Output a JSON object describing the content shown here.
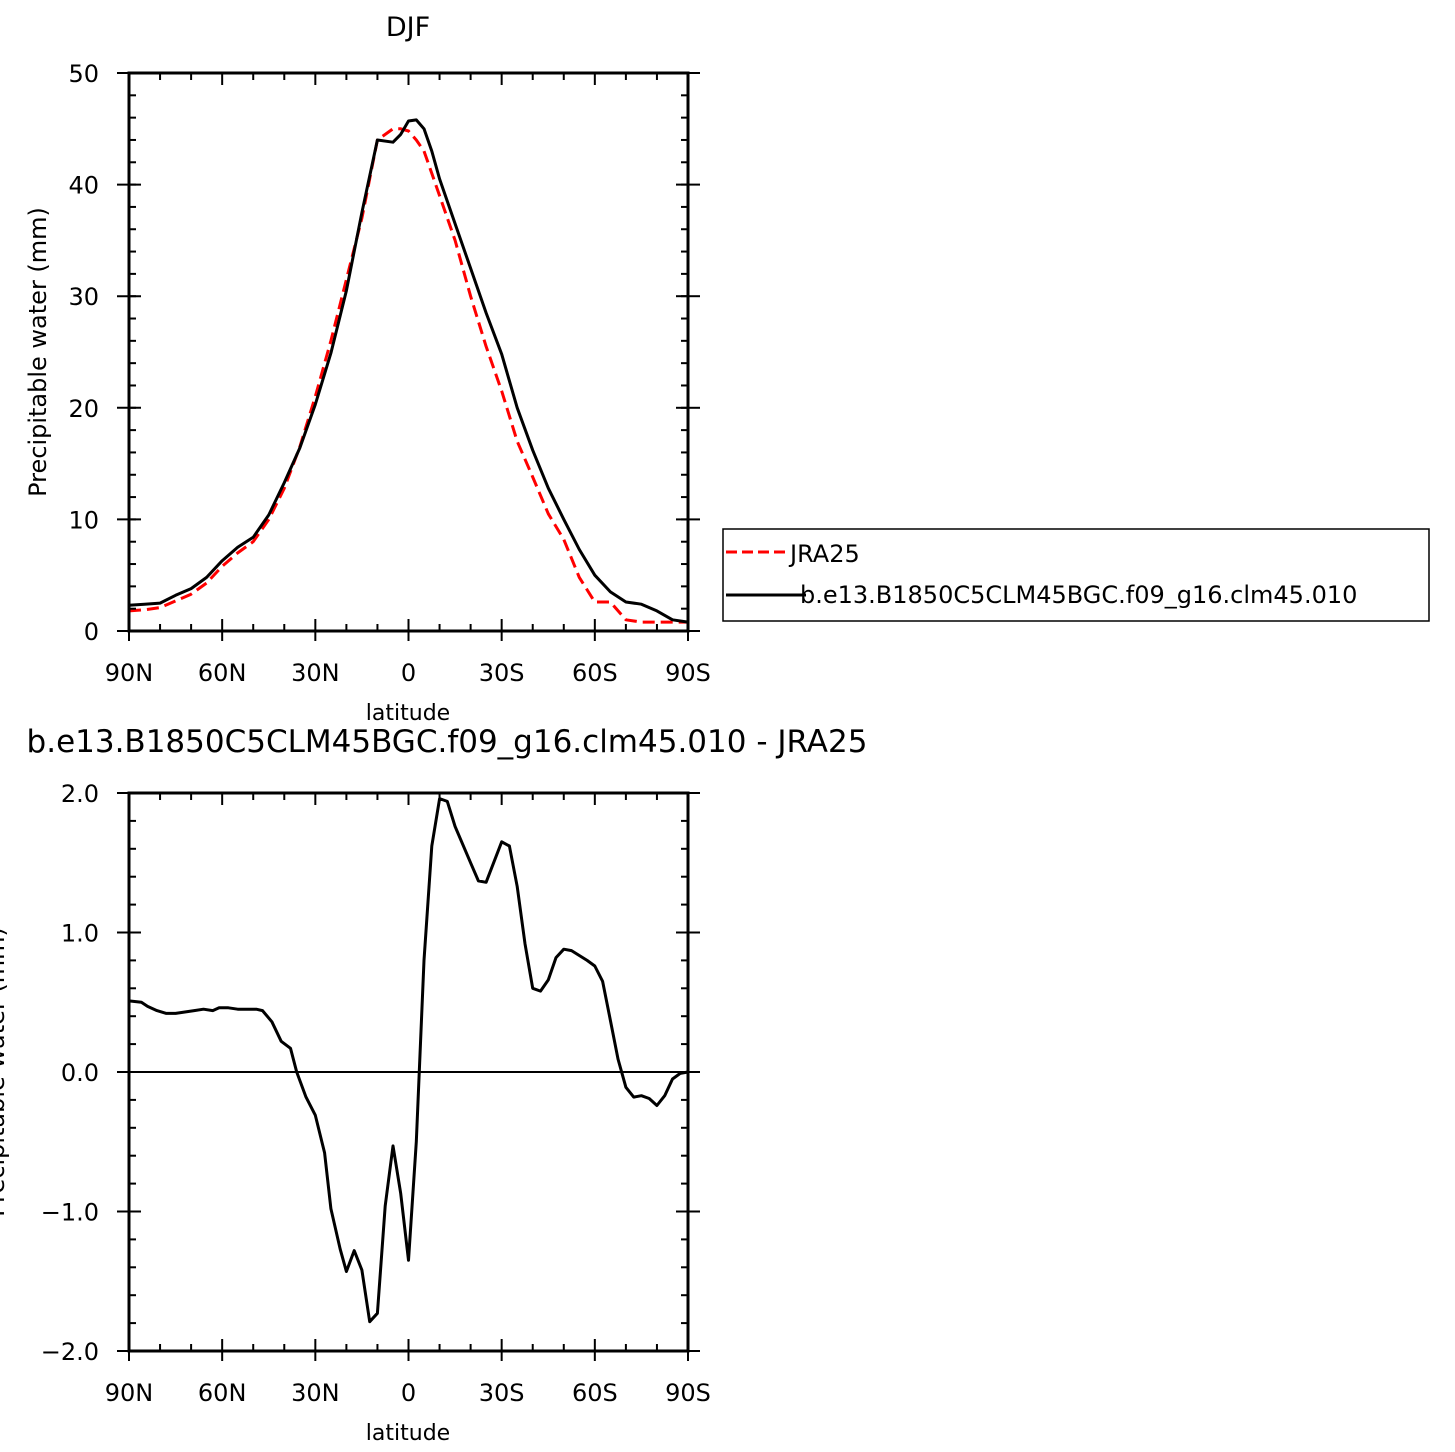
{
  "chart_data": [
    {
      "type": "line",
      "title": "DJF",
      "xlabel": "latitude",
      "ylabel": "Precipitable water (mm)",
      "xlim": [
        90,
        -90
      ],
      "ylim": [
        0,
        50
      ],
      "x_ticks": [
        {
          "value": 90,
          "label": "90N"
        },
        {
          "value": 60,
          "label": "60N"
        },
        {
          "value": 30,
          "label": "30N"
        },
        {
          "value": 0,
          "label": "0"
        },
        {
          "value": -30,
          "label": "30S"
        },
        {
          "value": -60,
          "label": "60S"
        },
        {
          "value": -90,
          "label": "90S"
        }
      ],
      "y_ticks": [
        {
          "value": 0,
          "label": "0"
        },
        {
          "value": 10,
          "label": "10"
        },
        {
          "value": 20,
          "label": "20"
        },
        {
          "value": 30,
          "label": "30"
        },
        {
          "value": 40,
          "label": "40"
        },
        {
          "value": 50,
          "label": "50"
        }
      ],
      "legend_position": "right",
      "series": [
        {
          "name": "JRA25",
          "color": "#ff0000",
          "dash": "dashed",
          "x": [
            90,
            85,
            80,
            75,
            70,
            65,
            60,
            55,
            50,
            45,
            40,
            35,
            30,
            25,
            20,
            15,
            10,
            5,
            2.5,
            0,
            -2.5,
            -5,
            -7.5,
            -10,
            -15,
            -20,
            -25,
            -30,
            -35,
            -40,
            -45,
            -50,
            -55,
            -60,
            -65,
            -70,
            -75,
            -80,
            -85,
            -90
          ],
          "y": [
            1.8,
            1.9,
            2.1,
            2.7,
            3.3,
            4.3,
            5.8,
            7.0,
            8.0,
            10.0,
            12.8,
            16.5,
            21.0,
            26.0,
            31.5,
            37.0,
            44.0,
            45.0,
            45.0,
            44.8,
            44.0,
            43.0,
            41.0,
            39.0,
            35.0,
            30.0,
            25.5,
            21.5,
            17.0,
            13.8,
            10.5,
            8.2,
            4.8,
            2.6,
            2.6,
            1.0,
            0.8,
            0.8,
            0.8,
            0.8
          ]
        },
        {
          "name": "b.e13.B1850C5CLM45BGC.f09_g16.clm45.010",
          "color": "#000000",
          "dash": "solid",
          "x": [
            90,
            85,
            80,
            75,
            70,
            65,
            60,
            55,
            50,
            45,
            40,
            35,
            30,
            25,
            20,
            15,
            10,
            5,
            2.5,
            0,
            -2.5,
            -5,
            -7.5,
            -10,
            -15,
            -20,
            -25,
            -30,
            -35,
            -40,
            -45,
            -50,
            -55,
            -60,
            -65,
            -70,
            -75,
            -80,
            -85,
            -90
          ],
          "y": [
            2.3,
            2.4,
            2.5,
            3.2,
            3.8,
            4.8,
            6.3,
            7.5,
            8.4,
            10.4,
            13.3,
            16.4,
            20.3,
            24.9,
            30.5,
            37.5,
            44.0,
            43.8,
            44.5,
            45.7,
            45.8,
            45.0,
            43.0,
            40.5,
            36.5,
            32.5,
            28.5,
            24.8,
            20.0,
            16.2,
            12.8,
            10.0,
            7.3,
            5.0,
            3.5,
            2.6,
            2.4,
            1.8,
            1.0,
            0.8
          ]
        }
      ]
    },
    {
      "type": "line",
      "title": "b.e13.B1850C5CLM45BGC.f09_g16.clm45.010 - JRA25",
      "xlabel": "latitude",
      "ylabel": "Precipitable water (mm)",
      "xlim": [
        90,
        -90
      ],
      "ylim": [
        -2.0,
        2.0
      ],
      "x_ticks": [
        {
          "value": 90,
          "label": "90N"
        },
        {
          "value": 60,
          "label": "60N"
        },
        {
          "value": 30,
          "label": "30N"
        },
        {
          "value": 0,
          "label": "0"
        },
        {
          "value": -30,
          "label": "30S"
        },
        {
          "value": -60,
          "label": "60S"
        },
        {
          "value": -90,
          "label": "90S"
        }
      ],
      "y_ticks": [
        {
          "value": -2.0,
          "label": "−2.0"
        },
        {
          "value": -1.0,
          "label": "−1.0"
        },
        {
          "value": 0.0,
          "label": "0.0"
        },
        {
          "value": 1.0,
          "label": "1.0"
        },
        {
          "value": 2.0,
          "label": "2.0"
        }
      ],
      "series": [
        {
          "color": "#000000",
          "dash": "solid",
          "x": [
            90,
            86,
            84,
            81,
            78,
            75,
            72,
            69,
            66,
            63,
            61,
            58,
            55,
            52,
            49,
            47,
            44,
            41,
            38,
            36,
            33,
            30,
            27,
            25,
            22,
            20,
            17.5,
            15,
            12.5,
            10,
            7.5,
            5,
            2.5,
            0,
            -2.5,
            -5,
            -7.5,
            -10,
            -12.5,
            -15,
            -20,
            -22.5,
            -25,
            -30,
            -32.5,
            -35,
            -37.5,
            -40,
            -42.5,
            -45,
            -47.5,
            -50,
            -52.5,
            -57.5,
            -60,
            -62.5,
            -65,
            -67.5,
            -70,
            -72.5,
            -75,
            -77.5,
            -80,
            -82.5,
            -85,
            -87.5,
            -90
          ],
          "y": [
            0.51,
            0.5,
            0.47,
            0.44,
            0.42,
            0.42,
            0.43,
            0.44,
            0.45,
            0.44,
            0.46,
            0.46,
            0.45,
            0.45,
            0.45,
            0.44,
            0.36,
            0.22,
            0.17,
            0.0,
            -0.18,
            -0.31,
            -0.58,
            -0.98,
            -1.27,
            -1.43,
            -1.28,
            -1.42,
            -1.79,
            -1.73,
            -0.96,
            -0.53,
            -0.87,
            -1.35,
            -0.5,
            0.8,
            1.62,
            1.96,
            1.94,
            1.76,
            1.5,
            1.37,
            1.36,
            1.65,
            1.62,
            1.33,
            0.92,
            0.6,
            0.58,
            0.66,
            0.82,
            0.88,
            0.87,
            0.8,
            0.76,
            0.65,
            0.37,
            0.09,
            -0.11,
            -0.18,
            -0.17,
            -0.19,
            -0.24,
            -0.17,
            -0.05,
            -0.01,
            0.0
          ]
        }
      ]
    }
  ]
}
